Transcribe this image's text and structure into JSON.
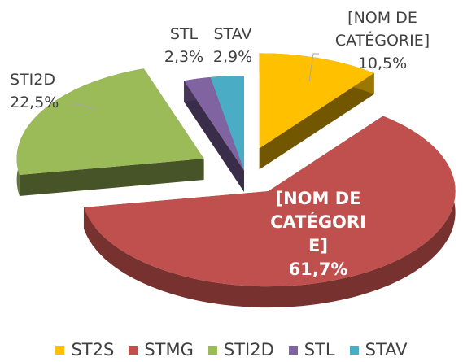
{
  "chart_data": {
    "type": "pie",
    "three_d": true,
    "categories": [
      "ST2S",
      "STMG",
      "STI2D",
      "STL",
      "STAV"
    ],
    "values": [
      10.5,
      61.7,
      22.5,
      2.3,
      2.9
    ],
    "value_labels": [
      "10,5%",
      "61,7%",
      "22,5%",
      "2,3%",
      "2,9%"
    ],
    "data_label_names": [
      "[NOM DE CATÉGORIE]",
      "[NOM DE CATÉGORIE]",
      "STI2D",
      "STL",
      "STAV"
    ],
    "colors": [
      "#ffc000",
      "#c0504d",
      "#9bbb59",
      "#8064a2",
      "#4bacc6"
    ],
    "legend": "bottom"
  }
}
